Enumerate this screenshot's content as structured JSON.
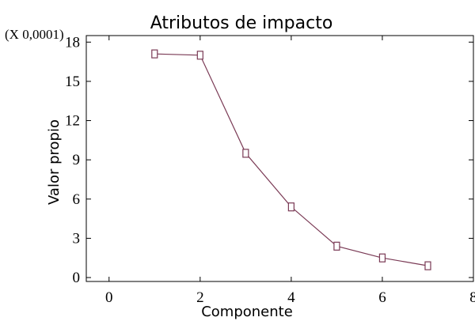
{
  "chart_data": {
    "type": "line",
    "title": "Atributos de impacto",
    "xlabel": "Componente",
    "ylabel": "Valor propio",
    "y_scale_label": "(X 0,0001)",
    "xlim": [
      -0.5,
      8
    ],
    "ylim": [
      -0.3,
      18.5
    ],
    "x_ticks": [
      0,
      2,
      4,
      6,
      8
    ],
    "y_ticks": [
      0,
      3,
      6,
      9,
      12,
      15,
      18
    ],
    "grid": false,
    "series": [
      {
        "x": [
          1,
          2,
          3,
          4,
          5,
          6,
          7
        ],
        "values": [
          17.1,
          17.0,
          9.5,
          5.4,
          2.4,
          1.5,
          0.9
        ],
        "color": "#7a3a55",
        "marker": "square"
      }
    ]
  }
}
